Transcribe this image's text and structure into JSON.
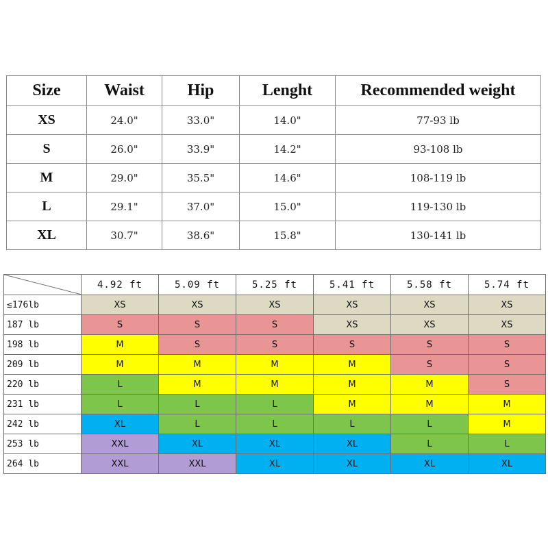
{
  "size_table": {
    "headers": [
      "Size",
      "Waist",
      "Hip",
      "Lenght",
      "Recommended weight"
    ],
    "rows": [
      [
        "XS",
        "24.0\"",
        "33.0\"",
        "14.0\"",
        "77-93 lb"
      ],
      [
        "S",
        "26.0\"",
        "33.9\"",
        "14.2\"",
        "93-108 lb"
      ],
      [
        "M",
        "29.0\"",
        "35.5\"",
        "14.6\"",
        "108-119 lb"
      ],
      [
        "L",
        "29.1\"",
        "37.0\"",
        "15.0\"",
        "119-130 lb"
      ],
      [
        "XL",
        "30.7\"",
        "38.6\"",
        "15.8\"",
        "130-141 lb"
      ]
    ]
  },
  "size_matrix": {
    "heights": [
      "4.92 ft",
      "5.09 ft",
      "5.25 ft",
      "5.41 ft",
      "5.58 ft",
      "5.74 ft"
    ],
    "weights": [
      "≤176lb",
      "187 lb",
      "198 lb",
      "209 lb",
      "220 lb",
      "231 lb",
      "242 lb",
      "253 lb",
      "264 lb"
    ],
    "cells": [
      [
        "XS",
        "XS",
        "XS",
        "XS",
        "XS",
        "XS"
      ],
      [
        "S",
        "S",
        "S",
        "XS",
        "XS",
        "XS"
      ],
      [
        "M",
        "S",
        "S",
        "S",
        "S",
        "S"
      ],
      [
        "M",
        "M",
        "M",
        "M",
        "S",
        "S"
      ],
      [
        "L",
        "M",
        "M",
        "M",
        "M",
        "S"
      ],
      [
        "L",
        "L",
        "L",
        "M",
        "M",
        "M"
      ],
      [
        "XL",
        "L",
        "L",
        "L",
        "L",
        "M"
      ],
      [
        "XXL",
        "XL",
        "XL",
        "XL",
        "L",
        "L"
      ],
      [
        "XXL",
        "XXL",
        "XL",
        "XL",
        "XL",
        "XL"
      ]
    ],
    "size_colors": {
      "XS": "#ddd9c3",
      "S": "#e99595",
      "M": "#ffff00",
      "L": "#7ec64b",
      "XL": "#00b0f0",
      "XXL": "#b19cd6"
    }
  }
}
